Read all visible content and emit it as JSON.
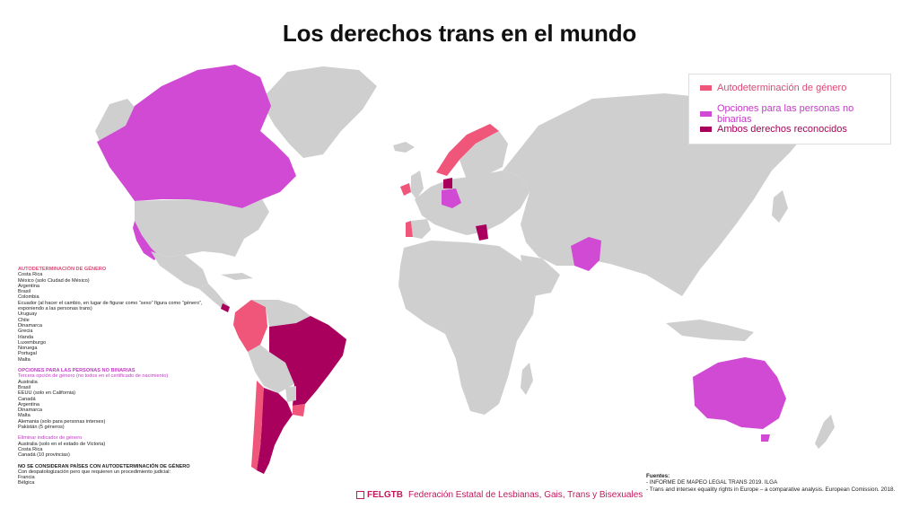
{
  "title": "Los derechos trans en el mundo",
  "colors": {
    "self_determination": "#f0557a",
    "nonbinary": "#d14ad4",
    "both": "#a8005c",
    "none": "#cfcfcf"
  },
  "legend": [
    {
      "label": "Autodeterminación de género",
      "color": "#f0557a"
    },
    {
      "label": "Opciones para las personas no binarias",
      "color": "#d14ad4"
    },
    {
      "label": "Ambos derechos reconocidos",
      "color": "#a8005c"
    }
  ],
  "notes": {
    "self_det_header": "AUTODETERMINACIÓN DE GÉNERO",
    "self_det_items": [
      "Costa Rica",
      "México (solo Ciudad de México)",
      "Argentina",
      "Brasil",
      "Colombia",
      "Ecuador (al hacer el cambio, en lugar de figurar como “sexo” figura como “género”, exponiendo a las personas trans)",
      "Uruguay",
      "Chile",
      "Dinamarca",
      "Grecia",
      "Irlanda",
      "Luxemburgo",
      "Noruega",
      "Portugal",
      "Malta"
    ],
    "nonbinary_header": "OPCIONES PARA LAS PERSONAS NO BINARIAS",
    "third_option_header": "Tercera opción de género (no todos en el certificado de nacimiento)",
    "third_option_items": [
      "Australia",
      "Brasil",
      "EEUU (solo en California)",
      "Canadá",
      "Argentina",
      "Dinamarca",
      "Malta",
      "Alemania (solo para personas intersex)",
      "Pakistán (5 géneros)"
    ],
    "remove_marker_header": "Eliminar indicador de género",
    "remove_marker_items": [
      "Australia (solo en el estado de Victoria)",
      "Costa Rica",
      "Canadá (10 provincias)"
    ],
    "not_considered_header": "NO SE CONSIDERAN PAÍSES CON AUTODETERMINACIÓN DE GÉNERO",
    "not_considered_sub": "Con despatologización pero que requieren un procedimiento judicial:",
    "not_considered_items": [
      "Francia",
      "Bélgica"
    ]
  },
  "sources": {
    "header": "Fuentes:",
    "items": [
      "- INFORME DE MAPEO LEGAL TRANS 2019. ILGA",
      "- Trans and intersex equality rights in Europe – a comparative analysis. European Comission. 2018."
    ]
  },
  "footer": {
    "brand": "FELGTB",
    "org": "Federación Estatal de Lesbianas, Gais, Trans y Bisexuales"
  }
}
